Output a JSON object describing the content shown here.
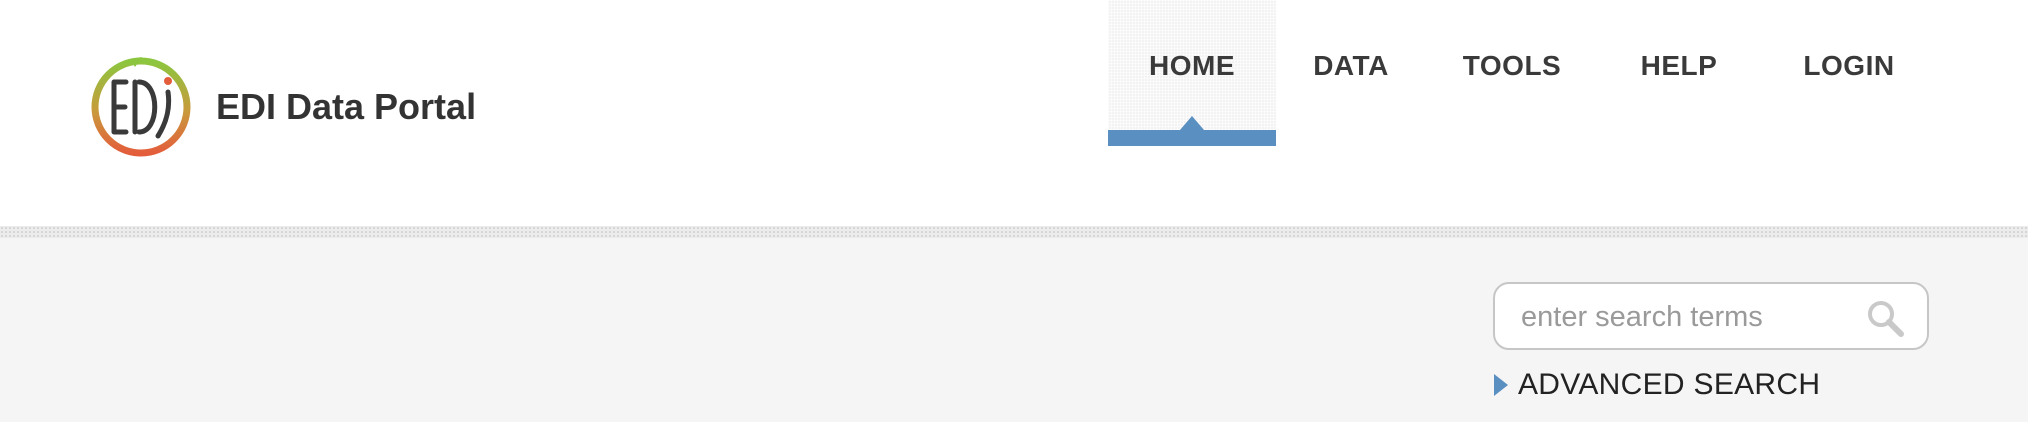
{
  "header": {
    "brand_name": "EDI Data Portal",
    "logo_icon": "edi-logo-icon"
  },
  "nav": {
    "items": [
      {
        "label": "HOME",
        "active": true
      },
      {
        "label": "DATA",
        "active": false
      },
      {
        "label": "TOOLS",
        "active": false
      },
      {
        "label": "HELP",
        "active": false
      },
      {
        "label": "LOGIN",
        "active": false
      }
    ]
  },
  "search": {
    "placeholder": "enter search terms",
    "value": "",
    "icon": "magnifier-icon",
    "advanced_label": "ADVANCED SEARCH"
  },
  "colors": {
    "accent": "#5a8fc2",
    "text_dark": "#333333",
    "content_bg": "#f5f5f5",
    "logo_green": "#8cc63f",
    "logo_orange": "#e35d3b"
  }
}
